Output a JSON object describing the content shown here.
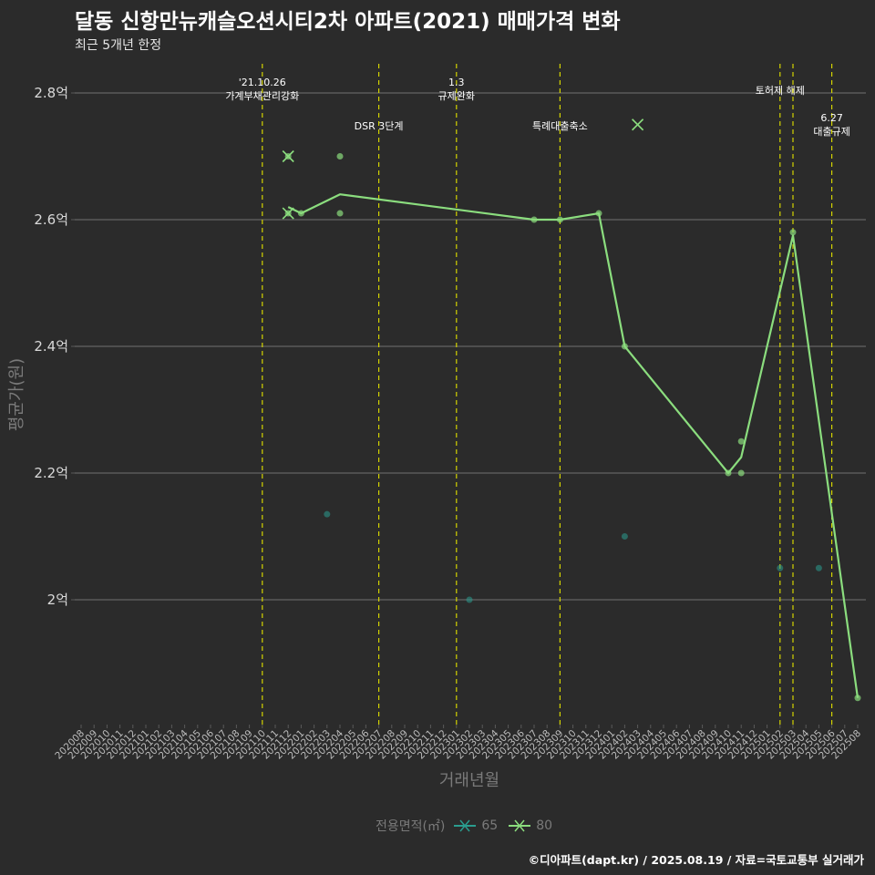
{
  "chart_data": {
    "type": "scatter+line",
    "title": "달동 신항만뉴캐슬오션시티2차 아파트(2021) 매매가격 변화",
    "subtitle": "최근 5개년 한정",
    "xlabel": "거래년월",
    "ylabel": "평균가(원)",
    "caption": "©디아파트(dapt.kr) / 2025.08.19 / 자료=국토교통부 실거래가",
    "legend_title": "전용면적(㎡)",
    "ylim": [
      1.8,
      2.85
    ],
    "y_ticks": [
      {
        "value": 2.0,
        "label": "2억"
      },
      {
        "value": 2.2,
        "label": "2.2억"
      },
      {
        "value": 2.4,
        "label": "2.4억"
      },
      {
        "value": 2.6,
        "label": "2.6억"
      },
      {
        "value": 2.8,
        "label": "2.8억"
      }
    ],
    "x_categories": [
      "202008",
      "202009",
      "202010",
      "202011",
      "202012",
      "202101",
      "202102",
      "202103",
      "202104",
      "202105",
      "202106",
      "202107",
      "202108",
      "202109",
      "202110",
      "202111",
      "202112",
      "202201",
      "202202",
      "202203",
      "202204",
      "202205",
      "202206",
      "202207",
      "202208",
      "202209",
      "202210",
      "202211",
      "202212",
      "202301",
      "202302",
      "202303",
      "202304",
      "202305",
      "202306",
      "202307",
      "202308",
      "202309",
      "202310",
      "202311",
      "202312",
      "202401",
      "202402",
      "202403",
      "202404",
      "202405",
      "202406",
      "202407",
      "202408",
      "202409",
      "202410",
      "202411",
      "202412",
      "202501",
      "202502",
      "202503",
      "202504",
      "202505",
      "202506",
      "202507",
      "202508"
    ],
    "events": [
      {
        "x": "202110",
        "label": "'21.10.26\n가계부채관리강화",
        "row": 1
      },
      {
        "x": "202207",
        "label": "DSR 3단계",
        "row": 2
      },
      {
        "x": "202301",
        "label": "1.3\n규제완화",
        "row": 1
      },
      {
        "x": "202309",
        "label": "특례대출축소",
        "row": 2
      },
      {
        "x": "202502",
        "label": "토허제 해제",
        "row": 1
      },
      {
        "x": "202503",
        "label": "",
        "row": 0
      },
      {
        "x": "202506",
        "label": "6.27\n대출규제",
        "row": 2
      }
    ],
    "series": [
      {
        "name": "65",
        "color": "#2a9d8f",
        "points": [
          {
            "x": "202203",
            "y": 2.135
          },
          {
            "x": "202302",
            "y": 2.0
          },
          {
            "x": "202402",
            "y": 2.1
          },
          {
            "x": "202502",
            "y": 2.05
          },
          {
            "x": "202505",
            "y": 2.05
          }
        ],
        "max_points": [],
        "line": []
      },
      {
        "name": "80",
        "color": "#8bdd7e",
        "points": [
          {
            "x": "202112",
            "y": 2.61
          },
          {
            "x": "202112",
            "y": 2.7
          },
          {
            "x": "202201",
            "y": 2.61
          },
          {
            "x": "202204",
            "y": 2.61
          },
          {
            "x": "202204",
            "y": 2.7
          },
          {
            "x": "202307",
            "y": 2.6
          },
          {
            "x": "202309",
            "y": 2.6
          },
          {
            "x": "202312",
            "y": 2.61
          },
          {
            "x": "202402",
            "y": 2.4
          },
          {
            "x": "202410",
            "y": 2.2
          },
          {
            "x": "202411",
            "y": 2.2
          },
          {
            "x": "202411",
            "y": 2.25
          },
          {
            "x": "202503",
            "y": 2.58
          },
          {
            "x": "202508",
            "y": 1.845
          }
        ],
        "max_points": [
          {
            "x": "202112",
            "y": 2.7
          },
          {
            "x": "202112",
            "y": 2.61
          },
          {
            "x": "202403",
            "y": 2.75
          }
        ],
        "line": [
          {
            "x": "202112",
            "y": 2.62
          },
          {
            "x": "202201",
            "y": 2.61
          },
          {
            "x": "202204",
            "y": 2.64
          },
          {
            "x": "202307",
            "y": 2.6
          },
          {
            "x": "202309",
            "y": 2.6
          },
          {
            "x": "202312",
            "y": 2.61
          },
          {
            "x": "202402",
            "y": 2.4
          },
          {
            "x": "202410",
            "y": 2.2
          },
          {
            "x": "202411",
            "y": 2.225
          },
          {
            "x": "202503",
            "y": 2.575
          },
          {
            "x": "202508",
            "y": 1.845
          }
        ]
      }
    ],
    "grid": true,
    "legend_position": "bottom",
    "event_line_color": "#d4d400"
  }
}
